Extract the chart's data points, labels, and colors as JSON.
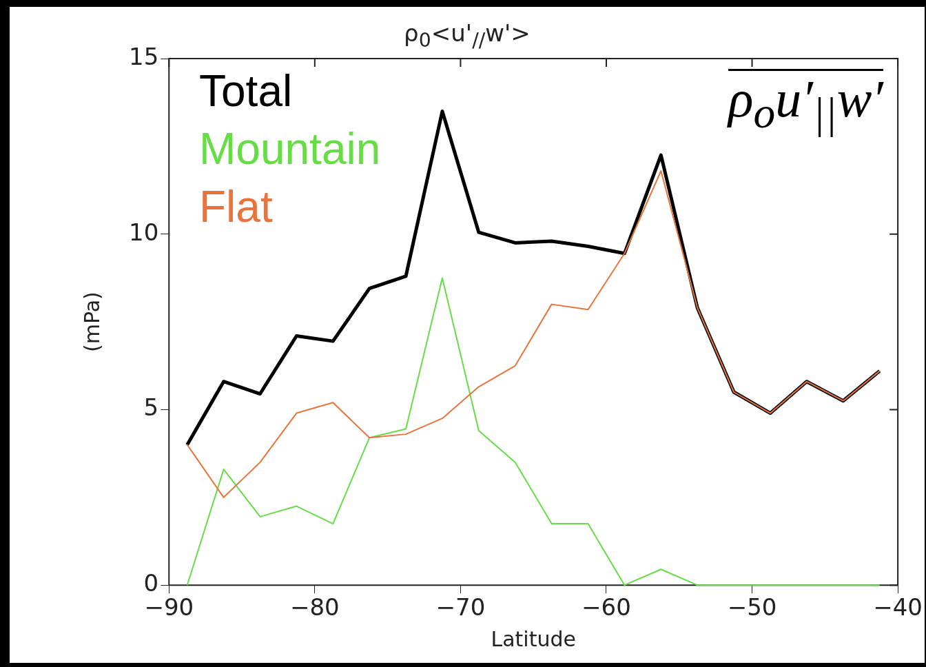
{
  "chart_data": {
    "type": "line",
    "title": "ρ$_{0}$<u'$_{//}$w'>",
    "xlabel": "Latitude",
    "ylabel": "(mPa)",
    "x": [
      -88.75,
      -86.25,
      -83.75,
      -81.25,
      -78.75,
      -76.25,
      -73.75,
      -71.25,
      -68.75,
      -66.25,
      -63.75,
      -61.25,
      -58.75,
      -56.25,
      -53.75,
      -51.25,
      -48.75,
      -46.25,
      -43.75,
      -41.25
    ],
    "series": [
      {
        "name": "Total",
        "color": "#000000",
        "values": [
          4.0,
          5.8,
          5.45,
          7.1,
          6.95,
          8.45,
          8.8,
          13.5,
          10.05,
          9.75,
          9.8,
          9.65,
          9.45,
          12.25,
          7.9,
          5.5,
          4.9,
          5.8,
          5.25,
          6.1
        ]
      },
      {
        "name": "Mountain",
        "color": "#66dd44",
        "values": [
          0,
          3.3,
          1.95,
          2.25,
          1.75,
          4.2,
          4.45,
          8.75,
          4.4,
          3.5,
          1.75,
          1.75,
          0,
          0.45,
          0,
          0,
          0,
          0,
          0,
          0
        ]
      },
      {
        "name": "Flat",
        "color": "#e8743b",
        "values": [
          4.0,
          2.5,
          3.5,
          4.9,
          5.2,
          4.2,
          4.3,
          4.75,
          5.65,
          6.25,
          8.0,
          7.85,
          9.45,
          11.8,
          7.9,
          5.5,
          4.9,
          5.8,
          5.25,
          6.1
        ]
      }
    ],
    "xlim": [
      -90,
      -40
    ],
    "xticks": [
      -90,
      -80,
      -70,
      -60,
      -50,
      -40
    ],
    "ylim": [
      0,
      15
    ],
    "yticks": [
      0,
      5,
      10,
      15
    ],
    "grid": false,
    "legend": "top left",
    "marker": "none",
    "line_style": "solid",
    "annotations": [
      "ρ$_{o}$u′$_{||}$w′"
    ]
  }
}
